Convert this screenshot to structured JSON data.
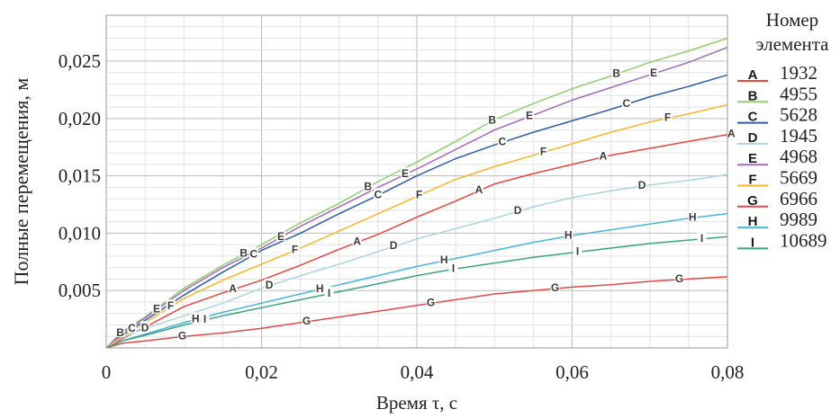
{
  "chart_data": {
    "type": "line",
    "xlabel": "Время τ, с",
    "ylabel": "Полные перемещения, м",
    "xlim": [
      0,
      0.08
    ],
    "ylim": [
      0,
      0.029
    ],
    "x_ticks": [
      0,
      0.02,
      0.04,
      0.06,
      0.08
    ],
    "x_tick_labels": [
      "0",
      "0,02",
      "0,04",
      "0,06",
      "0,08"
    ],
    "y_ticks": [
      0.005,
      0.01,
      0.015,
      0.02,
      0.025
    ],
    "y_tick_labels": [
      "0,005",
      "0,010",
      "0,015",
      "0,020",
      "0,025"
    ],
    "grid": true,
    "legend": {
      "position": "right",
      "title_line1": "Номер",
      "title_line2": "элемента"
    },
    "series": [
      {
        "letter": "A",
        "name": "1932",
        "color": "#e8453c",
        "x": [
          0,
          0.002,
          0.005,
          0.01,
          0.015,
          0.02,
          0.025,
          0.03,
          0.035,
          0.04,
          0.045,
          0.05,
          0.055,
          0.06,
          0.065,
          0.07,
          0.075,
          0.08
        ],
        "y": [
          0,
          0.0008,
          0.0018,
          0.0036,
          0.0048,
          0.0059,
          0.0072,
          0.0086,
          0.0099,
          0.0114,
          0.0128,
          0.0143,
          0.0152,
          0.016,
          0.0168,
          0.0174,
          0.018,
          0.0186
        ],
        "label_x": [
          0.0163,
          0.0323,
          0.048,
          0.064,
          0.0805
        ]
      },
      {
        "letter": "B",
        "name": "4955",
        "color": "#8ecf6f",
        "x": [
          0,
          0.002,
          0.005,
          0.01,
          0.015,
          0.02,
          0.025,
          0.03,
          0.035,
          0.04,
          0.045,
          0.05,
          0.055,
          0.06,
          0.065,
          0.07,
          0.075,
          0.08
        ],
        "y": [
          0,
          0.0014,
          0.0027,
          0.0052,
          0.0072,
          0.009,
          0.0109,
          0.0126,
          0.0145,
          0.0162,
          0.018,
          0.0199,
          0.0213,
          0.0226,
          0.0237,
          0.0249,
          0.0259,
          0.027
        ],
        "label_x": [
          0.0018,
          0.0177,
          0.0337,
          0.0497,
          0.0657
        ]
      },
      {
        "letter": "C",
        "name": "5628",
        "color": "#2e5da8",
        "x": [
          0,
          0.002,
          0.005,
          0.01,
          0.015,
          0.02,
          0.025,
          0.03,
          0.035,
          0.04,
          0.045,
          0.05,
          0.055,
          0.06,
          0.065,
          0.07,
          0.075,
          0.08
        ],
        "y": [
          0,
          0.0011,
          0.0024,
          0.0046,
          0.0066,
          0.0085,
          0.01,
          0.0117,
          0.0133,
          0.015,
          0.0165,
          0.0177,
          0.0188,
          0.0198,
          0.0208,
          0.0219,
          0.0228,
          0.0238
        ],
        "label_x": [
          0.0033,
          0.019,
          0.035,
          0.051,
          0.067
        ]
      },
      {
        "letter": "D",
        "name": "1945",
        "color": "#a8d6e0",
        "x": [
          0,
          0.002,
          0.005,
          0.01,
          0.015,
          0.02,
          0.025,
          0.03,
          0.035,
          0.04,
          0.045,
          0.05,
          0.055,
          0.06,
          0.065,
          0.07,
          0.075,
          0.08
        ],
        "y": [
          0,
          0.0009,
          0.0017,
          0.0028,
          0.0039,
          0.0052,
          0.0063,
          0.0073,
          0.0084,
          0.0095,
          0.0104,
          0.0113,
          0.0123,
          0.0131,
          0.0137,
          0.0142,
          0.0146,
          0.0151
        ],
        "label_x": [
          0.005,
          0.021,
          0.037,
          0.053,
          0.069
        ]
      },
      {
        "letter": "E",
        "name": "4968",
        "color": "#a569c0",
        "x": [
          0,
          0.002,
          0.005,
          0.01,
          0.015,
          0.02,
          0.025,
          0.03,
          0.035,
          0.04,
          0.045,
          0.05,
          0.055,
          0.06,
          0.065,
          0.07,
          0.075,
          0.08
        ],
        "y": [
          0,
          0.0013,
          0.0026,
          0.005,
          0.007,
          0.0087,
          0.0106,
          0.0123,
          0.014,
          0.0156,
          0.0173,
          0.019,
          0.0203,
          0.0216,
          0.0227,
          0.0238,
          0.0249,
          0.0262
        ],
        "label_x": [
          0.0065,
          0.0225,
          0.0385,
          0.0545,
          0.0705
        ]
      },
      {
        "letter": "F",
        "name": "5669",
        "color": "#f9b529",
        "x": [
          0,
          0.002,
          0.005,
          0.01,
          0.015,
          0.02,
          0.025,
          0.03,
          0.035,
          0.04,
          0.045,
          0.05,
          0.055,
          0.06,
          0.065,
          0.07,
          0.075,
          0.08
        ],
        "y": [
          0,
          0.001,
          0.0022,
          0.0043,
          0.0059,
          0.0073,
          0.0087,
          0.0102,
          0.0117,
          0.0132,
          0.0147,
          0.0158,
          0.0168,
          0.0178,
          0.0188,
          0.0197,
          0.0204,
          0.0212
        ],
        "label_x": [
          0.0083,
          0.0243,
          0.0403,
          0.0563,
          0.0723
        ]
      },
      {
        "letter": "G",
        "name": "6966",
        "color": "#e04a4a",
        "x": [
          0,
          0.002,
          0.005,
          0.01,
          0.015,
          0.02,
          0.025,
          0.03,
          0.035,
          0.04,
          0.045,
          0.05,
          0.055,
          0.06,
          0.065,
          0.07,
          0.075,
          0.08
        ],
        "y": [
          0,
          0.0004,
          0.0006,
          0.001,
          0.0013,
          0.0017,
          0.0022,
          0.0027,
          0.0032,
          0.0037,
          0.0042,
          0.0047,
          0.005,
          0.0053,
          0.0055,
          0.0058,
          0.006,
          0.0062
        ],
        "label_x": [
          0.0098,
          0.0258,
          0.0418,
          0.0578,
          0.0738
        ]
      },
      {
        "letter": "H",
        "name": "9989",
        "color": "#46b7d8",
        "x": [
          0,
          0.002,
          0.005,
          0.01,
          0.015,
          0.02,
          0.025,
          0.03,
          0.035,
          0.04,
          0.045,
          0.05,
          0.055,
          0.06,
          0.065,
          0.07,
          0.075,
          0.08
        ],
        "y": [
          0,
          0.0006,
          0.0012,
          0.0022,
          0.0031,
          0.0039,
          0.0047,
          0.0055,
          0.0063,
          0.0071,
          0.0078,
          0.0085,
          0.0092,
          0.0098,
          0.0103,
          0.0108,
          0.0113,
          0.0117
        ],
        "label_x": [
          0.0115,
          0.0275,
          0.0435,
          0.0595,
          0.0755
        ]
      },
      {
        "letter": "I",
        "name": "10689",
        "color": "#3aa383",
        "x": [
          0,
          0.002,
          0.005,
          0.01,
          0.015,
          0.02,
          0.025,
          0.03,
          0.035,
          0.04,
          0.045,
          0.05,
          0.055,
          0.06,
          0.065,
          0.07,
          0.075,
          0.08
        ],
        "y": [
          0,
          0.0006,
          0.0011,
          0.002,
          0.0028,
          0.0035,
          0.0042,
          0.0049,
          0.0056,
          0.0063,
          0.0069,
          0.0074,
          0.0079,
          0.0083,
          0.0087,
          0.0091,
          0.0094,
          0.0097
        ],
        "label_x": [
          0.0127,
          0.0287,
          0.0447,
          0.0607,
          0.0767
        ]
      }
    ]
  }
}
